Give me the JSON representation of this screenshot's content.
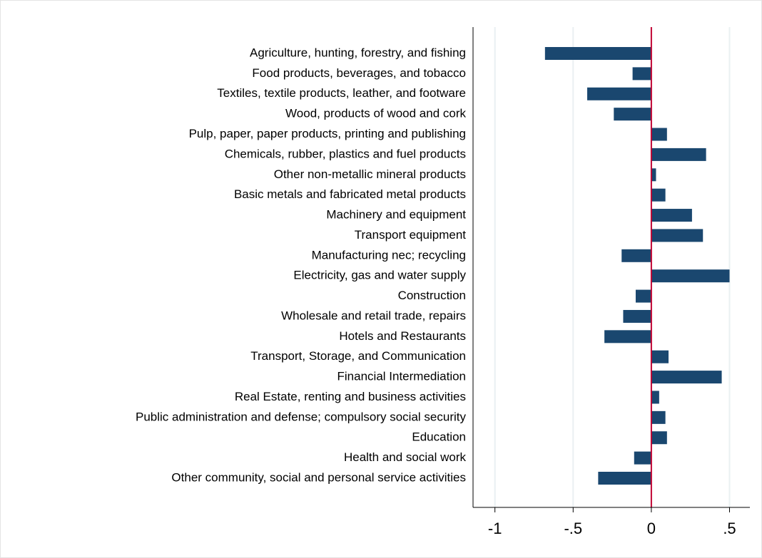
{
  "chart_data": {
    "type": "barh",
    "categories": [
      "Agriculture, hunting, forestry, and fishing",
      "Food products, beverages, and tobacco",
      "Textiles, textile products, leather, and footware",
      "Wood, products of wood and cork",
      "Pulp, paper, paper products, printing and publishing",
      "Chemicals, rubber, plastics and fuel products",
      "Other non-metallic mineral products",
      "Basic metals and fabricated metal products",
      "Machinery and equipment",
      "Transport equipment",
      "Manufacturing nec; recycling",
      "Electricity, gas and water supply",
      "Construction",
      "Wholesale and retail trade, repairs",
      "Hotels and Restaurants",
      "Transport, Storage, and Communication",
      "Financial Intermediation",
      "Real Estate, renting and business activities",
      "Public administration and defense; compulsory social security",
      "Education",
      "Health and social work",
      "Other community, social and personal service activities"
    ],
    "values": [
      -0.68,
      -0.12,
      -0.41,
      -0.24,
      0.1,
      0.35,
      0.03,
      0.09,
      0.26,
      0.33,
      -0.19,
      0.5,
      -0.1,
      -0.18,
      -0.3,
      0.11,
      0.45,
      0.05,
      0.09,
      0.1,
      -0.11,
      -0.34
    ],
    "color": "#1a476f",
    "xlim": [
      -1.14,
      0.63
    ],
    "xticks": [
      -1,
      {
        "value": -0.5,
        "label": "-.5"
      },
      0,
      {
        "value": 0.5,
        "label": ".5"
      }
    ],
    "grid": true,
    "reference_line": 0,
    "reference_color": "#c10534"
  }
}
